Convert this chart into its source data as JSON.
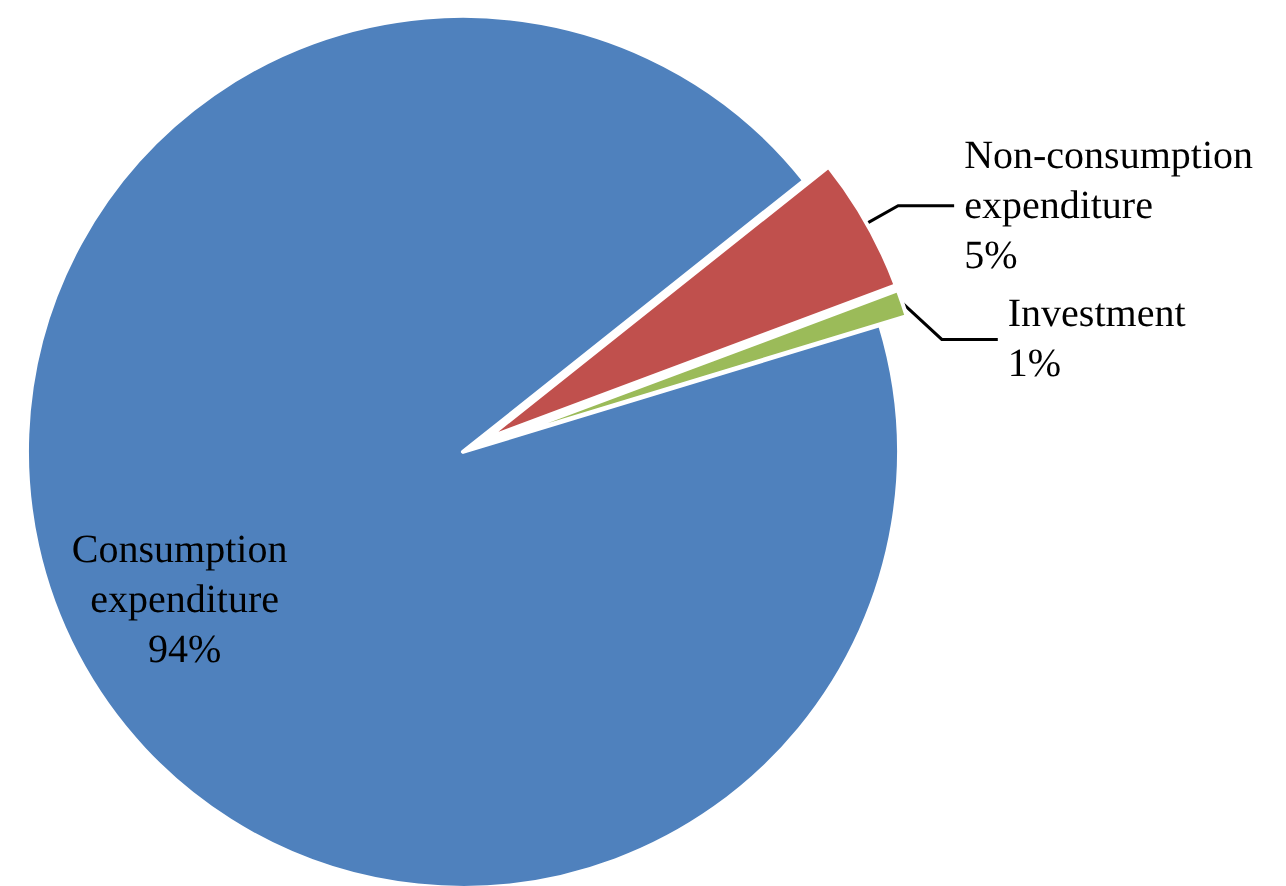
{
  "chart_data": {
    "type": "pie",
    "categories": [
      "Non-consumption expenditure",
      "Investment",
      "Consumption expenditure"
    ],
    "values": [
      5,
      1,
      94
    ],
    "value_labels": [
      "5%",
      "1%",
      "94%"
    ],
    "colors": [
      "#c0504d",
      "#9bbb59",
      "#4f81bd"
    ],
    "legend": false
  }
}
